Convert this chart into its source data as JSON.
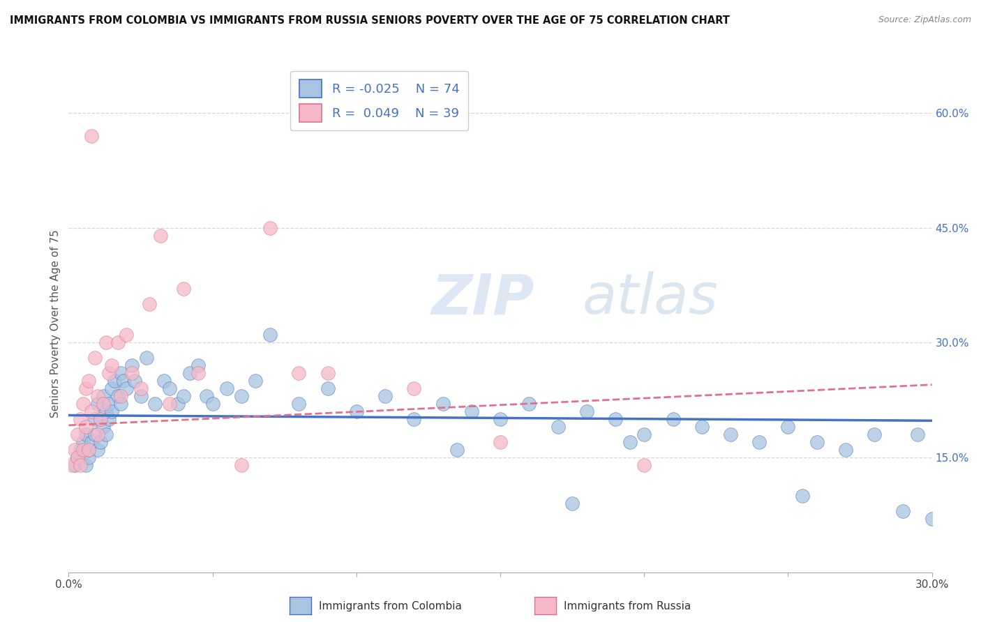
{
  "title": "IMMIGRANTS FROM COLOMBIA VS IMMIGRANTS FROM RUSSIA SENIORS POVERTY OVER THE AGE OF 75 CORRELATION CHART",
  "source": "Source: ZipAtlas.com",
  "ylabel": "Seniors Poverty Over the Age of 75",
  "xlim": [
    0.0,
    0.3
  ],
  "ylim": [
    0.0,
    0.65
  ],
  "yticks_right": [
    0.15,
    0.3,
    0.45,
    0.6
  ],
  "ytick_right_labels": [
    "15.0%",
    "30.0%",
    "45.0%",
    "60.0%"
  ],
  "colombia_R": -0.025,
  "colombia_N": 74,
  "russia_R": 0.049,
  "russia_N": 39,
  "colombia_color": "#a8c4e0",
  "russia_color": "#f4b8c8",
  "colombia_edge_color": "#4472c4",
  "russia_edge_color": "#e07090",
  "colombia_line_color": "#4472c4",
  "russia_line_color": "#e07090",
  "legend_label_colombia": "Immigrants from Colombia",
  "legend_label_russia": "Immigrants from Russia",
  "background_color": "#ffffff",
  "grid_color": "#cccccc",
  "colombia_scatter_x": [
    0.002,
    0.003,
    0.004,
    0.005,
    0.006,
    0.006,
    0.007,
    0.007,
    0.008,
    0.009,
    0.009,
    0.01,
    0.01,
    0.011,
    0.011,
    0.012,
    0.012,
    0.013,
    0.013,
    0.014,
    0.014,
    0.015,
    0.015,
    0.016,
    0.017,
    0.018,
    0.018,
    0.019,
    0.02,
    0.022,
    0.023,
    0.025,
    0.027,
    0.03,
    0.033,
    0.035,
    0.038,
    0.04,
    0.042,
    0.045,
    0.048,
    0.05,
    0.055,
    0.06,
    0.065,
    0.07,
    0.08,
    0.09,
    0.1,
    0.11,
    0.12,
    0.13,
    0.14,
    0.15,
    0.16,
    0.17,
    0.18,
    0.19,
    0.2,
    0.21,
    0.22,
    0.23,
    0.24,
    0.25,
    0.26,
    0.27,
    0.28,
    0.29,
    0.295,
    0.3,
    0.255,
    0.195,
    0.175,
    0.135
  ],
  "colombia_scatter_y": [
    0.14,
    0.15,
    0.16,
    0.17,
    0.14,
    0.18,
    0.15,
    0.16,
    0.17,
    0.18,
    0.2,
    0.16,
    0.22,
    0.17,
    0.2,
    0.19,
    0.23,
    0.18,
    0.21,
    0.22,
    0.2,
    0.21,
    0.24,
    0.25,
    0.23,
    0.22,
    0.26,
    0.25,
    0.24,
    0.27,
    0.25,
    0.23,
    0.28,
    0.22,
    0.25,
    0.24,
    0.22,
    0.23,
    0.26,
    0.27,
    0.23,
    0.22,
    0.24,
    0.23,
    0.25,
    0.31,
    0.22,
    0.24,
    0.21,
    0.23,
    0.2,
    0.22,
    0.21,
    0.2,
    0.22,
    0.19,
    0.21,
    0.2,
    0.18,
    0.2,
    0.19,
    0.18,
    0.17,
    0.19,
    0.17,
    0.16,
    0.18,
    0.08,
    0.18,
    0.07,
    0.1,
    0.17,
    0.09,
    0.16
  ],
  "russia_scatter_x": [
    0.001,
    0.002,
    0.003,
    0.003,
    0.004,
    0.004,
    0.005,
    0.005,
    0.006,
    0.006,
    0.007,
    0.007,
    0.008,
    0.008,
    0.009,
    0.01,
    0.01,
    0.011,
    0.012,
    0.013,
    0.014,
    0.015,
    0.017,
    0.018,
    0.02,
    0.022,
    0.025,
    0.028,
    0.032,
    0.035,
    0.04,
    0.045,
    0.06,
    0.07,
    0.08,
    0.09,
    0.12,
    0.15,
    0.2
  ],
  "russia_scatter_y": [
    0.14,
    0.16,
    0.15,
    0.18,
    0.14,
    0.2,
    0.16,
    0.22,
    0.19,
    0.24,
    0.16,
    0.25,
    0.57,
    0.21,
    0.28,
    0.18,
    0.23,
    0.2,
    0.22,
    0.3,
    0.26,
    0.27,
    0.3,
    0.23,
    0.31,
    0.26,
    0.24,
    0.35,
    0.44,
    0.22,
    0.37,
    0.26,
    0.14,
    0.45,
    0.26,
    0.26,
    0.24,
    0.17,
    0.14
  ],
  "col_trend_x": [
    0.0,
    0.3
  ],
  "col_trend_y": [
    0.205,
    0.198
  ],
  "rus_trend_x": [
    0.0,
    0.3
  ],
  "rus_trend_y": [
    0.192,
    0.245
  ]
}
